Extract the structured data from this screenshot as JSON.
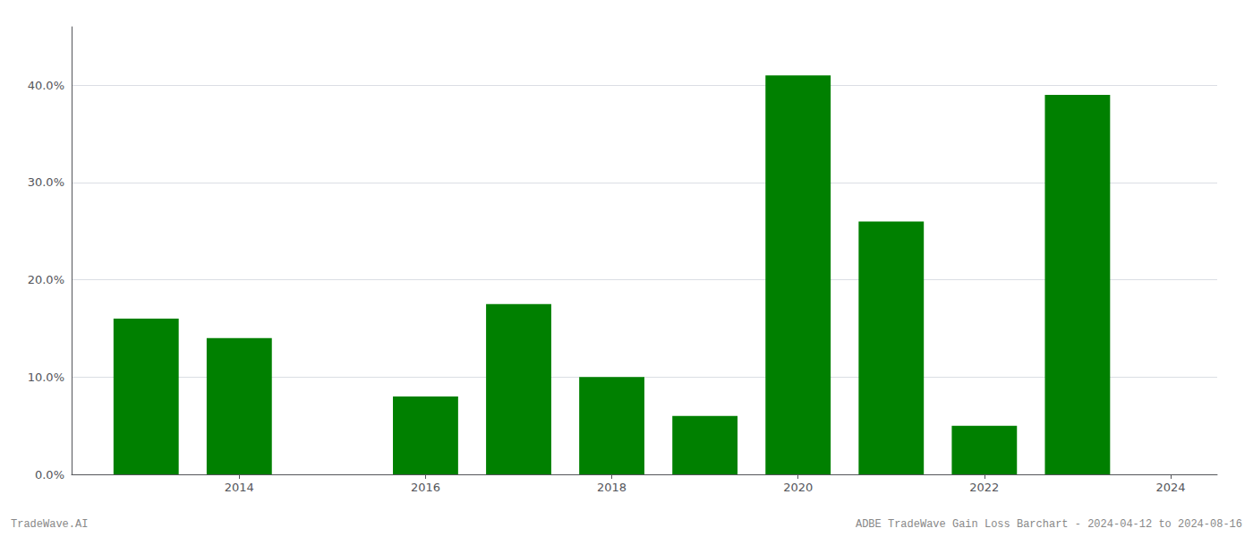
{
  "chart_data": {
    "type": "bar",
    "x": [
      2013,
      2014,
      2016,
      2017,
      2018,
      2019,
      2020,
      2021,
      2022,
      2023
    ],
    "values": [
      0.16,
      0.14,
      0.08,
      0.175,
      0.1,
      0.06,
      0.41,
      0.26,
      0.05,
      0.39
    ],
    "color": "#008000",
    "xlim": [
      2012.2,
      2024.5
    ],
    "xticks": [
      2014,
      2016,
      2018,
      2020,
      2022,
      2024
    ],
    "ylim": [
      0.0,
      0.46
    ],
    "yticks": [
      {
        "value": 0.0,
        "label": "0.0%"
      },
      {
        "value": 0.1,
        "label": "10.0%"
      },
      {
        "value": 0.2,
        "label": "20.0%"
      },
      {
        "value": 0.3,
        "label": "30.0%"
      },
      {
        "value": 0.4,
        "label": "40.0%"
      }
    ],
    "grid": true,
    "annotations": [
      "TradeWave.AI",
      "ADBE TradeWave Gain Loss Barchart - 2024-04-12 to 2024-08-16"
    ]
  }
}
